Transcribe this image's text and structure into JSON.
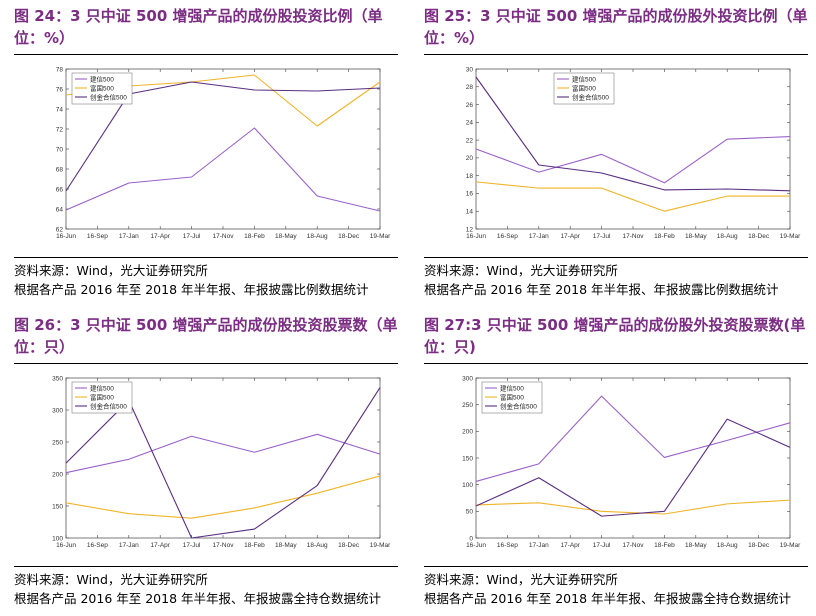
{
  "panels": [
    {
      "title": "图 24：3 只中证 500 增强产品的成份股投资比例（单位：%）",
      "source": "资料来源：Wind，光大证券研究所",
      "note": "根据各产品 2016 年至 2018 年半年报、年报披露比例数据统计"
    },
    {
      "title": "图 25：3 只中证 500 增强产品的成份股外投资比例（单位：%）",
      "source": "资料来源：Wind，光大证券研究所",
      "note": "根据各产品 2016 年至 2018 年半年报、年报披露比例数据统计"
    },
    {
      "title": "图 26：3 只中证 500 增强产品的成份股投资股票数（单位：只）",
      "source": "资料来源：Wind，光大证券研究所",
      "note": "根据各产品 2016 年至 2018 年半年报、年报披露全持仓数据统计"
    },
    {
      "title": "图 27:3 只中证 500 增强产品的成份股外投资股票数(单位：只)",
      "source": "资料来源：Wind，光大证券研究所",
      "note": "根据各产品 2016 年至 2018 年半年报、年报披露全持仓数据统计"
    }
  ],
  "chart_data": [
    {
      "type": "line",
      "x_ticks": [
        "16-Jun",
        "16-Sep",
        "17-Jan",
        "17-Apr",
        "17-Jul",
        "17-Nov",
        "18-Feb",
        "18-May",
        "18-Aug",
        "18-Dec",
        "19-Mar"
      ],
      "x_points": [
        0,
        2,
        4,
        6,
        8,
        10
      ],
      "ylim": [
        62,
        78
      ],
      "yticks": [
        62,
        64,
        66,
        68,
        70,
        72,
        74,
        76,
        78
      ],
      "legend_position": "top-left",
      "series": [
        {
          "name": "建信500",
          "color": "#9a62c9",
          "values": [
            63.9,
            66.6,
            67.2,
            72.1,
            65.3,
            63.8
          ]
        },
        {
          "name": "富国500",
          "color": "#f0b429",
          "values": [
            75.4,
            76.3,
            76.7,
            77.4,
            72.3,
            76.7
          ]
        },
        {
          "name": "创金合信500",
          "color": "#5a2d82",
          "values": [
            65.8,
            75.5,
            76.7,
            75.9,
            75.8,
            76.1
          ]
        }
      ]
    },
    {
      "type": "line",
      "x_ticks": [
        "16-Jun",
        "16-Sep",
        "17-Jan",
        "17-Apr",
        "17-Jul",
        "17-Nov",
        "18-Feb",
        "18-May",
        "18-Aug",
        "18-Dec",
        "19-Mar"
      ],
      "x_points": [
        0,
        2,
        4,
        6,
        8,
        10
      ],
      "ylim": [
        12,
        30
      ],
      "yticks": [
        12,
        14,
        16,
        18,
        20,
        22,
        24,
        26,
        28,
        30
      ],
      "legend_position": "top-right",
      "series": [
        {
          "name": "建信500",
          "color": "#9a62c9",
          "values": [
            21.0,
            18.4,
            20.4,
            17.2,
            22.1,
            22.4
          ]
        },
        {
          "name": "富国500",
          "color": "#f0b429",
          "values": [
            17.3,
            16.6,
            16.6,
            14.0,
            15.7,
            15.7
          ]
        },
        {
          "name": "创金合信500",
          "color": "#5a2d82",
          "values": [
            29.1,
            19.2,
            18.3,
            16.4,
            16.5,
            16.3
          ]
        }
      ]
    },
    {
      "type": "line",
      "x_ticks": [
        "16-Jun",
        "16-Sep",
        "17-Jan",
        "17-Apr",
        "17-Jul",
        "17-Nov",
        "18-Feb",
        "18-May",
        "18-Aug",
        "18-Dec",
        "19-Mar"
      ],
      "x_points": [
        0,
        2,
        4,
        6,
        8,
        10
      ],
      "ylim": [
        100,
        350
      ],
      "yticks": [
        100,
        150,
        200,
        250,
        300,
        350
      ],
      "legend_position": "top-left",
      "series": [
        {
          "name": "建信500",
          "color": "#9a62c9",
          "values": [
            202,
            223,
            259,
            234,
            262,
            231
          ]
        },
        {
          "name": "富国500",
          "color": "#f0b429",
          "values": [
            155,
            138,
            131,
            147,
            170,
            197
          ]
        },
        {
          "name": "创金合信500",
          "color": "#5a2d82",
          "values": [
            217,
            315,
            100,
            114,
            182,
            335
          ]
        }
      ]
    },
    {
      "type": "line",
      "x_ticks": [
        "16-Jun",
        "16-Sep",
        "17-Jan",
        "17-Apr",
        "17-Jul",
        "17-Nov",
        "18-Feb",
        "18-May",
        "18-Aug",
        "18-Dec",
        "19-Mar"
      ],
      "x_points": [
        0,
        2,
        4,
        6,
        8,
        10
      ],
      "ylim": [
        0,
        300
      ],
      "yticks": [
        0,
        50,
        100,
        150,
        200,
        250,
        300
      ],
      "legend_position": "top-left",
      "series": [
        {
          "name": "建信500",
          "color": "#9a62c9",
          "values": [
            106,
            139,
            266,
            151,
            183,
            216
          ]
        },
        {
          "name": "富国500",
          "color": "#f0b429",
          "values": [
            62,
            66,
            50,
            45,
            64,
            71
          ]
        },
        {
          "name": "创金合信500",
          "color": "#5a2d82",
          "values": [
            60,
            113,
            41,
            50,
            223,
            170
          ]
        }
      ]
    }
  ]
}
